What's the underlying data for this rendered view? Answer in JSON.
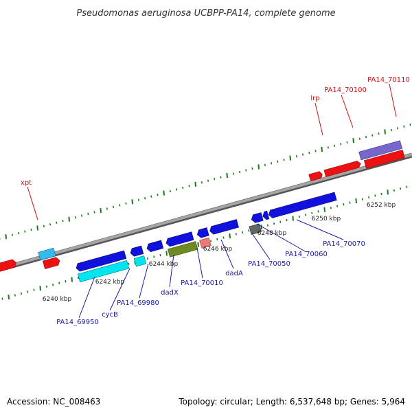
{
  "title": "Pseudomonas aeruginosa UCBPP-PA14, complete genome",
  "footer": {
    "accession": "Accession: NC_008463",
    "summary": "Topology: circular; Length: 6,537,648 bp; Genes: 5,964"
  },
  "colors": {
    "backbone": "#8c8c8c",
    "backbone_edge": "#5a5a5a",
    "tick": "#1a7a1a",
    "forward_gene": "#1111dd",
    "reverse_gene": "#ee1111",
    "rna_gene": "#00e5ee",
    "label_blue": "#1a1aaa",
    "label_red": "#cc1111"
  },
  "scale_labels": [
    "6240 kbp",
    "6242 kbp",
    "6244 kbp",
    "6246 kbp",
    "6248 kbp",
    "6250 kbp",
    "6252 kbp"
  ],
  "gene_labels": {
    "top": [
      "xpt",
      "lrp",
      "PA14_70100",
      "PA14_70110"
    ],
    "bottom": [
      "PA14_69950",
      "cycB",
      "PA14_69980",
      "dadX",
      "PA14_70010",
      "dadA",
      "PA14_70050",
      "PA14_70060",
      "PA14_70070"
    ]
  }
}
